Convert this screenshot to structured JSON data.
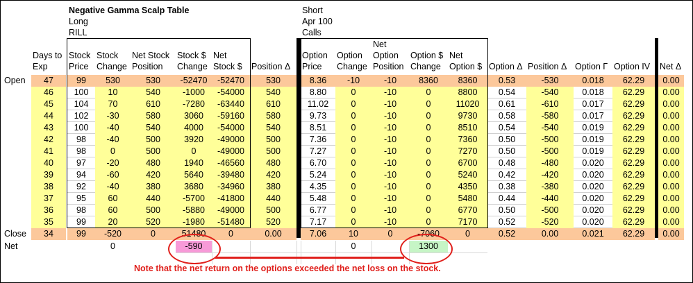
{
  "header": {
    "title": "Negative Gamma Scalp Table",
    "left_line2": "Long",
    "left_line3": "RILL",
    "right_line1": "Short",
    "right_line2": "Apr 100",
    "right_line3": "Calls"
  },
  "columns": [
    {
      "l1": "Days to",
      "l2": "Exp"
    },
    {
      "l1": "Stock",
      "l2": "Price"
    },
    {
      "l1": "Stock",
      "l2": "Change"
    },
    {
      "l1": "Net Stock",
      "l2": "Position"
    },
    {
      "l1": "Stock $",
      "l2": "Change"
    },
    {
      "l1": "Net",
      "l2": "Stock $"
    },
    {
      "l1": "",
      "l2": "Position Δ"
    },
    {
      "l1": "Option",
      "l2": "Price"
    },
    {
      "l1": "Option",
      "l2": "Change"
    },
    {
      "l0": "Net",
      "l1": "Option",
      "l2": "Position"
    },
    {
      "l1": "Option $",
      "l2": "Change"
    },
    {
      "l1": "Net",
      "l2": "Option $"
    },
    {
      "l1": "",
      "l2": "Option Δ"
    },
    {
      "l1": "",
      "l2": "Position Δ"
    },
    {
      "l1": "",
      "l2": "Option Γ"
    },
    {
      "l1": "",
      "l2": "Option IV"
    },
    {
      "l1": "",
      "l2": "Net Δ"
    }
  ],
  "rows": [
    {
      "label": "Open",
      "cells": [
        "47",
        "99",
        "530",
        "530",
        "-52470",
        "-52470",
        "530",
        "8.36",
        "-10",
        "-10",
        "8360",
        "8360",
        "0.53",
        "-530",
        "0.018",
        "62.29",
        "0.00"
      ]
    },
    {
      "label": "",
      "cells": [
        "46",
        "100",
        "10",
        "540",
        "-1000",
        "-54000",
        "540",
        "8.80",
        "0",
        "-10",
        "0",
        "8800",
        "0.54",
        "-540",
        "0.018",
        "62.29",
        "0.00"
      ]
    },
    {
      "label": "",
      "cells": [
        "45",
        "104",
        "70",
        "610",
        "-7280",
        "-63440",
        "610",
        "11.02",
        "0",
        "-10",
        "0",
        "11020",
        "0.61",
        "-610",
        "0.017",
        "62.29",
        "0.00"
      ]
    },
    {
      "label": "",
      "cells": [
        "44",
        "102",
        "-30",
        "580",
        "3060",
        "-59160",
        "580",
        "9.73",
        "0",
        "-10",
        "0",
        "9730",
        "0.58",
        "-580",
        "0.017",
        "62.29",
        "0.00"
      ]
    },
    {
      "label": "",
      "cells": [
        "43",
        "100",
        "-40",
        "540",
        "4000",
        "-54000",
        "540",
        "8.51",
        "0",
        "-10",
        "0",
        "8510",
        "0.54",
        "-540",
        "0.019",
        "62.29",
        "0.00"
      ]
    },
    {
      "label": "",
      "cells": [
        "42",
        "98",
        "-40",
        "500",
        "3920",
        "-49000",
        "500",
        "7.36",
        "0",
        "-10",
        "0",
        "7360",
        "0.50",
        "-500",
        "0.019",
        "62.29",
        "0.00"
      ]
    },
    {
      "label": "",
      "cells": [
        "41",
        "98",
        "0",
        "500",
        "0",
        "-49000",
        "500",
        "7.27",
        "0",
        "-10",
        "0",
        "7270",
        "0.50",
        "-500",
        "0.019",
        "62.29",
        "0.00"
      ]
    },
    {
      "label": "",
      "cells": [
        "40",
        "97",
        "-20",
        "480",
        "1940",
        "-46560",
        "480",
        "6.70",
        "0",
        "-10",
        "0",
        "6700",
        "0.48",
        "-480",
        "0.020",
        "62.29",
        "0.00"
      ]
    },
    {
      "label": "",
      "cells": [
        "39",
        "94",
        "-60",
        "420",
        "5640",
        "-39480",
        "420",
        "5.24",
        "0",
        "-10",
        "0",
        "5240",
        "0.42",
        "-420",
        "0.020",
        "62.29",
        "0.00"
      ]
    },
    {
      "label": "",
      "cells": [
        "38",
        "92",
        "-40",
        "380",
        "3680",
        "-34960",
        "380",
        "4.35",
        "0",
        "-10",
        "0",
        "4350",
        "0.38",
        "-380",
        "0.020",
        "62.29",
        "0.00"
      ]
    },
    {
      "label": "",
      "cells": [
        "37",
        "95",
        "60",
        "440",
        "-5700",
        "-41800",
        "440",
        "5.48",
        "0",
        "-10",
        "0",
        "5480",
        "0.44",
        "-440",
        "0.020",
        "62.29",
        "0.00"
      ]
    },
    {
      "label": "",
      "cells": [
        "36",
        "98",
        "60",
        "500",
        "-5880",
        "-49000",
        "500",
        "6.77",
        "0",
        "-10",
        "0",
        "6770",
        "0.50",
        "-500",
        "0.020",
        "62.29",
        "0.00"
      ]
    },
    {
      "label": "",
      "cells": [
        "35",
        "99",
        "20",
        "520",
        "-1980",
        "-51480",
        "520",
        "7.17",
        "0",
        "-10",
        "0",
        "7170",
        "0.52",
        "-520",
        "0.020",
        "62.29",
        "0.00"
      ]
    },
    {
      "label": "Close",
      "cells": [
        "34",
        "99",
        "-520",
        "0",
        "51480",
        "0",
        "0.00",
        "7.06",
        "10",
        "0",
        "-7060",
        "0",
        "0.52",
        "0.00",
        "0.021",
        "62.29",
        "0.00"
      ]
    }
  ],
  "net_row": {
    "label": "Net",
    "stock_change_total": "0",
    "stock_dollar_net": "-590",
    "option_change_total": "0",
    "option_dollar_net": "1300"
  },
  "annotation": {
    "note": "Note that the net return on the options exceeded the net loss on the stock.",
    "color": "#e0201c"
  },
  "colors": {
    "open_close_row": "#fcc89b",
    "data_fill": "#ffff99",
    "stock_loss_highlight": "#f79ad8",
    "option_gain_highlight": "#c6f5c6"
  }
}
